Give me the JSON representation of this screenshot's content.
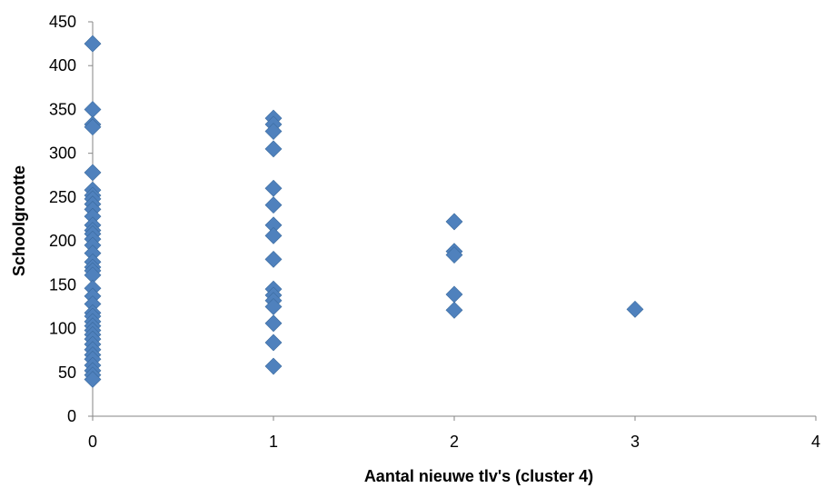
{
  "chart_data": {
    "type": "scatter",
    "title": "",
    "xlabel": "Aantal nieuwe tlv's (cluster 4)",
    "ylabel": "Schoolgrootte",
    "xlim": [
      0,
      4
    ],
    "ylim": [
      0,
      450
    ],
    "x_ticks": [
      0,
      1,
      2,
      3,
      4
    ],
    "y_ticks": [
      0,
      50,
      100,
      150,
      200,
      250,
      300,
      350,
      400,
      450
    ],
    "grid": false,
    "marker_shape": "diamond",
    "colors": {
      "marker": "#4F81BD",
      "axis": "#868686"
    },
    "series": [
      {
        "points": [
          [
            0,
            425
          ],
          [
            0,
            350
          ],
          [
            0,
            333
          ],
          [
            0,
            330
          ],
          [
            0,
            278
          ],
          [
            0,
            258
          ],
          [
            0,
            252
          ],
          [
            0,
            248
          ],
          [
            0,
            242
          ],
          [
            0,
            236
          ],
          [
            0,
            228
          ],
          [
            0,
            218
          ],
          [
            0,
            212
          ],
          [
            0,
            208
          ],
          [
            0,
            202
          ],
          [
            0,
            195
          ],
          [
            0,
            186
          ],
          [
            0,
            176
          ],
          [
            0,
            170
          ],
          [
            0,
            166
          ],
          [
            0,
            161
          ],
          [
            0,
            146
          ],
          [
            0,
            137
          ],
          [
            0,
            128
          ],
          [
            0,
            118
          ],
          [
            0,
            114
          ],
          [
            0,
            108
          ],
          [
            0,
            103
          ],
          [
            0,
            98
          ],
          [
            0,
            93
          ],
          [
            0,
            88
          ],
          [
            0,
            82
          ],
          [
            0,
            76
          ],
          [
            0,
            70
          ],
          [
            0,
            65
          ],
          [
            0,
            58
          ],
          [
            0,
            52
          ],
          [
            0,
            47
          ],
          [
            0,
            42
          ],
          [
            1,
            340
          ],
          [
            1,
            333
          ],
          [
            1,
            325
          ],
          [
            1,
            305
          ],
          [
            1,
            260
          ],
          [
            1,
            241
          ],
          [
            1,
            218
          ],
          [
            1,
            206
          ],
          [
            1,
            179
          ],
          [
            1,
            145
          ],
          [
            1,
            138
          ],
          [
            1,
            132
          ],
          [
            1,
            125
          ],
          [
            1,
            106
          ],
          [
            1,
            84
          ],
          [
            1,
            57
          ],
          [
            2,
            222
          ],
          [
            2,
            188
          ],
          [
            2,
            184
          ],
          [
            2,
            139
          ],
          [
            2,
            121
          ],
          [
            3,
            122
          ]
        ]
      }
    ]
  }
}
